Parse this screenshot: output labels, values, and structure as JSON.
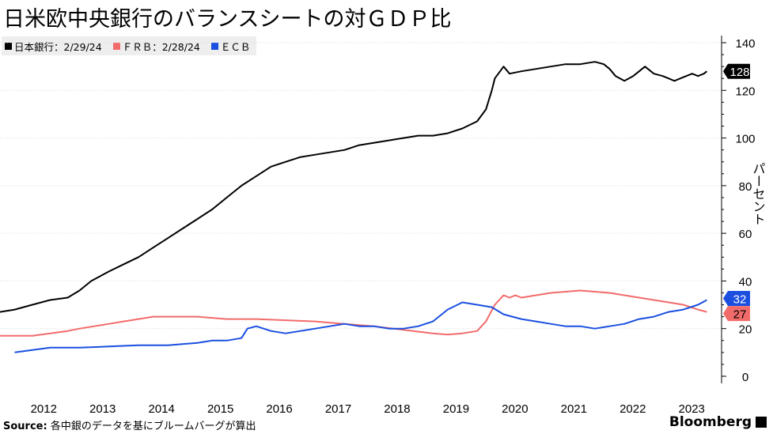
{
  "title": "日米欧中央銀行のバランスシートの対ＧＤＰ比",
  "legend": [
    {
      "label": "日本銀行：2/29/24",
      "color": "#000000"
    },
    {
      "label": "ＦＲＢ：2/28/24",
      "color": "#f26b6b"
    },
    {
      "label": "ＥＣＢ",
      "color": "#1a4fe0"
    }
  ],
  "source_label": "Source:",
  "source_text": "各中銀のデータを基にブルームバーグが算出",
  "brand": "Bloomberg",
  "chart_data": {
    "type": "line",
    "ylabel": "パーセント",
    "ylim": [
      -3,
      143
    ],
    "yticks": [
      0,
      20,
      40,
      60,
      80,
      100,
      120,
      140
    ],
    "xlim": [
      2011.65,
      2023.9
    ],
    "xticks": [
      2012,
      2013,
      2014,
      2015,
      2016,
      2017,
      2018,
      2019,
      2020,
      2021,
      2022,
      2023
    ],
    "grid": true,
    "legend_position": "top-left",
    "series": [
      {
        "name": "日本銀行：2/29/24",
        "color": "#000000",
        "end_label": "128",
        "points": [
          [
            2011.65,
            27
          ],
          [
            2011.9,
            28
          ],
          [
            2012.2,
            30
          ],
          [
            2012.5,
            32
          ],
          [
            2012.8,
            33
          ],
          [
            2013.0,
            36
          ],
          [
            2013.2,
            40
          ],
          [
            2013.5,
            44
          ],
          [
            2013.75,
            47
          ],
          [
            2014.0,
            50
          ],
          [
            2014.25,
            54
          ],
          [
            2014.5,
            58
          ],
          [
            2014.75,
            62
          ],
          [
            2015.0,
            66
          ],
          [
            2015.25,
            70
          ],
          [
            2015.5,
            75
          ],
          [
            2015.75,
            80
          ],
          [
            2016.0,
            84
          ],
          [
            2016.25,
            88
          ],
          [
            2016.5,
            90
          ],
          [
            2016.75,
            92
          ],
          [
            2017.0,
            93
          ],
          [
            2017.25,
            94
          ],
          [
            2017.5,
            95
          ],
          [
            2017.75,
            97
          ],
          [
            2018.0,
            98
          ],
          [
            2018.25,
            99
          ],
          [
            2018.5,
            100
          ],
          [
            2018.75,
            101
          ],
          [
            2019.0,
            101
          ],
          [
            2019.25,
            102
          ],
          [
            2019.5,
            104
          ],
          [
            2019.75,
            107
          ],
          [
            2019.9,
            112
          ],
          [
            2020.0,
            120
          ],
          [
            2020.05,
            125
          ],
          [
            2020.2,
            130
          ],
          [
            2020.3,
            127
          ],
          [
            2020.5,
            128
          ],
          [
            2020.75,
            129
          ],
          [
            2021.0,
            130
          ],
          [
            2021.25,
            131
          ],
          [
            2021.5,
            131
          ],
          [
            2021.75,
            132
          ],
          [
            2021.9,
            131
          ],
          [
            2022.0,
            129
          ],
          [
            2022.1,
            126
          ],
          [
            2022.25,
            124
          ],
          [
            2022.4,
            126
          ],
          [
            2022.5,
            128
          ],
          [
            2022.6,
            130
          ],
          [
            2022.75,
            127
          ],
          [
            2022.9,
            126
          ],
          [
            2023.0,
            125
          ],
          [
            2023.1,
            124
          ],
          [
            2023.2,
            125
          ],
          [
            2023.3,
            126
          ],
          [
            2023.4,
            127
          ],
          [
            2023.5,
            126
          ],
          [
            2023.6,
            127
          ],
          [
            2023.65,
            128
          ]
        ]
      },
      {
        "name": "ＦＲＢ：2/28/24",
        "color": "#f26b6b",
        "end_label": "27",
        "points": [
          [
            2011.65,
            17
          ],
          [
            2011.9,
            17
          ],
          [
            2012.2,
            17
          ],
          [
            2012.5,
            18
          ],
          [
            2012.8,
            19
          ],
          [
            2013.0,
            20
          ],
          [
            2013.5,
            22
          ],
          [
            2013.75,
            23
          ],
          [
            2014.0,
            24
          ],
          [
            2014.25,
            25
          ],
          [
            2014.5,
            25
          ],
          [
            2014.75,
            25
          ],
          [
            2015.0,
            25
          ],
          [
            2015.5,
            24
          ],
          [
            2016.0,
            24
          ],
          [
            2016.5,
            23.5
          ],
          [
            2017.0,
            23
          ],
          [
            2017.5,
            22
          ],
          [
            2018.0,
            21
          ],
          [
            2018.5,
            19.5
          ],
          [
            2019.0,
            18
          ],
          [
            2019.25,
            17.5
          ],
          [
            2019.5,
            18
          ],
          [
            2019.75,
            19
          ],
          [
            2019.9,
            23
          ],
          [
            2020.05,
            30
          ],
          [
            2020.2,
            34
          ],
          [
            2020.3,
            33
          ],
          [
            2020.4,
            34
          ],
          [
            2020.5,
            33
          ],
          [
            2020.75,
            34
          ],
          [
            2021.0,
            35
          ],
          [
            2021.25,
            35.5
          ],
          [
            2021.5,
            36
          ],
          [
            2021.75,
            35.5
          ],
          [
            2022.0,
            35
          ],
          [
            2022.25,
            34
          ],
          [
            2022.5,
            33
          ],
          [
            2022.75,
            32
          ],
          [
            2023.0,
            31
          ],
          [
            2023.25,
            30
          ],
          [
            2023.5,
            28
          ],
          [
            2023.65,
            27
          ]
        ]
      },
      {
        "name": "ＥＣＢ",
        "color": "#1a4fe0",
        "end_label": "32",
        "points": [
          [
            2011.9,
            10
          ],
          [
            2012.2,
            11
          ],
          [
            2012.5,
            12
          ],
          [
            2012.8,
            12
          ],
          [
            2013.0,
            12
          ],
          [
            2013.5,
            12.5
          ],
          [
            2014.0,
            13
          ],
          [
            2014.5,
            13
          ],
          [
            2015.0,
            14
          ],
          [
            2015.25,
            15
          ],
          [
            2015.5,
            15
          ],
          [
            2015.75,
            16
          ],
          [
            2015.85,
            20
          ],
          [
            2016.0,
            21
          ],
          [
            2016.25,
            19
          ],
          [
            2016.5,
            18
          ],
          [
            2016.75,
            19
          ],
          [
            2017.0,
            20
          ],
          [
            2017.25,
            21
          ],
          [
            2017.5,
            22
          ],
          [
            2017.75,
            21
          ],
          [
            2018.0,
            21
          ],
          [
            2018.25,
            20
          ],
          [
            2018.5,
            20
          ],
          [
            2018.75,
            21
          ],
          [
            2019.0,
            23
          ],
          [
            2019.1,
            25
          ],
          [
            2019.25,
            28
          ],
          [
            2019.5,
            31
          ],
          [
            2019.75,
            30
          ],
          [
            2020.0,
            29
          ],
          [
            2020.2,
            26
          ],
          [
            2020.5,
            24
          ],
          [
            2020.75,
            23
          ],
          [
            2021.0,
            22
          ],
          [
            2021.25,
            21
          ],
          [
            2021.5,
            21
          ],
          [
            2021.75,
            20
          ],
          [
            2022.0,
            21
          ],
          [
            2022.25,
            22
          ],
          [
            2022.5,
            24
          ],
          [
            2022.75,
            25
          ],
          [
            2023.0,
            27
          ],
          [
            2023.25,
            28
          ],
          [
            2023.5,
            30
          ],
          [
            2023.65,
            32
          ]
        ]
      }
    ]
  }
}
